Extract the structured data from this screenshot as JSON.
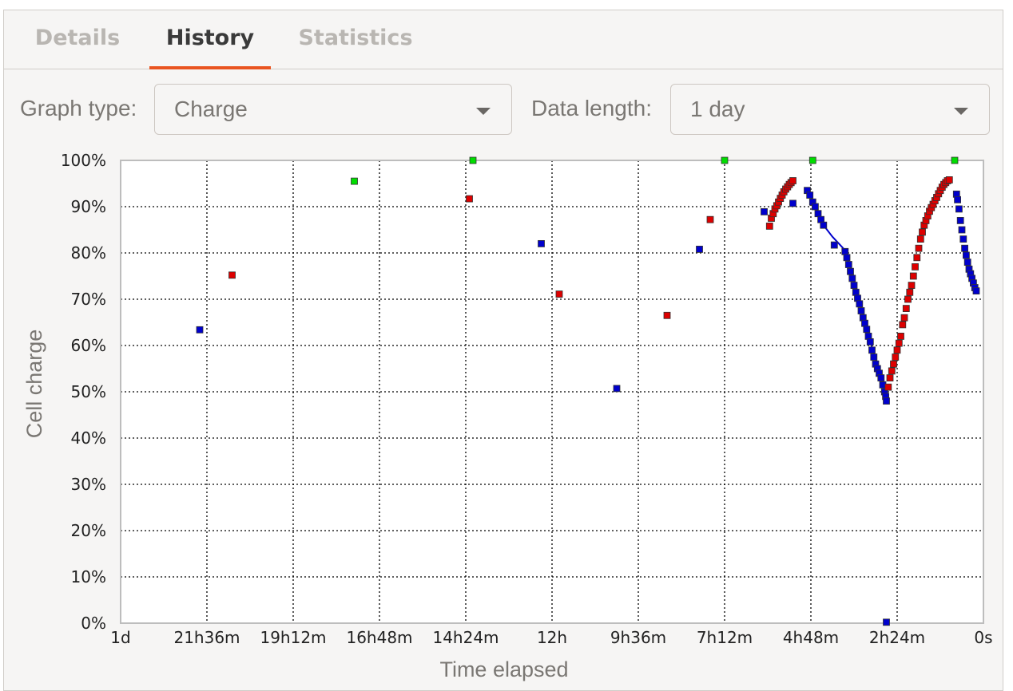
{
  "tabs": [
    {
      "label": "Details",
      "active": false
    },
    {
      "label": "History",
      "active": true
    },
    {
      "label": "Statistics",
      "active": false
    }
  ],
  "controls": {
    "graph_type_label": "Graph type:",
    "graph_type_value": "Charge",
    "data_length_label": "Data length:",
    "data_length_value": "1 day"
  },
  "colors": {
    "accent": "#e95420",
    "discharging": "#0000cc",
    "charging": "#dd0000",
    "charged": "#00dd00"
  },
  "chart_data": {
    "type": "scatter",
    "xlabel": "Time elapsed",
    "ylabel": "Cell charge",
    "x_units": "hours ago",
    "xlim": [
      24,
      0
    ],
    "ylim": [
      0,
      100
    ],
    "x_ticks": [
      {
        "value": 24,
        "label": "1d"
      },
      {
        "value": 21.6,
        "label": "21h36m"
      },
      {
        "value": 19.2,
        "label": "19h12m"
      },
      {
        "value": 16.8,
        "label": "16h48m"
      },
      {
        "value": 14.4,
        "label": "14h24m"
      },
      {
        "value": 12,
        "label": "12h"
      },
      {
        "value": 9.6,
        "label": "9h36m"
      },
      {
        "value": 7.2,
        "label": "7h12m"
      },
      {
        "value": 4.8,
        "label": "4h48m"
      },
      {
        "value": 2.4,
        "label": "2h24m"
      },
      {
        "value": 0,
        "label": "0s"
      }
    ],
    "y_ticks": [
      {
        "value": 100,
        "label": "100%"
      },
      {
        "value": 90,
        "label": "90%"
      },
      {
        "value": 80,
        "label": "80%"
      },
      {
        "value": 70,
        "label": "70%"
      },
      {
        "value": 60,
        "label": "60%"
      },
      {
        "value": 50,
        "label": "50%"
      },
      {
        "value": 40,
        "label": "40%"
      },
      {
        "value": 30,
        "label": "30%"
      },
      {
        "value": 20,
        "label": "20%"
      },
      {
        "value": 10,
        "label": "10%"
      },
      {
        "value": 0,
        "label": "0%"
      }
    ],
    "grid": true,
    "series": [
      {
        "state": "discharging",
        "points": [
          [
            21.8,
            63.4
          ],
          [
            12.3,
            82.0
          ],
          [
            10.2,
            50.7
          ],
          [
            7.9,
            80.8
          ],
          [
            6.1,
            88.9
          ],
          [
            5.3,
            90.7
          ],
          [
            4.9,
            93.5
          ],
          [
            4.83,
            92.5
          ],
          [
            4.75,
            91.0
          ],
          [
            4.68,
            90.0
          ],
          [
            4.6,
            88.5
          ],
          [
            4.52,
            87.2
          ],
          [
            4.45,
            86.0
          ],
          [
            4.15,
            81.7
          ],
          [
            3.85,
            80.3
          ],
          [
            3.8,
            79.0
          ],
          [
            3.75,
            77.5
          ],
          [
            3.7,
            76.0
          ],
          [
            3.65,
            74.5
          ],
          [
            3.6,
            73.0
          ],
          [
            3.55,
            71.5
          ],
          [
            3.5,
            70.2
          ],
          [
            3.45,
            69.0
          ],
          [
            3.4,
            67.5
          ],
          [
            3.35,
            66.0
          ],
          [
            3.3,
            64.8
          ],
          [
            3.25,
            63.5
          ],
          [
            3.2,
            62.0
          ],
          [
            3.15,
            60.8
          ],
          [
            3.1,
            59.0
          ],
          [
            3.05,
            57.5
          ],
          [
            3.0,
            56.0
          ],
          [
            2.95,
            55.0
          ],
          [
            2.9,
            54.0
          ],
          [
            2.85,
            53.0
          ],
          [
            2.8,
            51.5
          ],
          [
            2.75,
            50.0
          ],
          [
            2.72,
            49.0
          ],
          [
            2.7,
            48.0
          ],
          [
            0.75,
            92.7
          ],
          [
            0.72,
            91.5
          ],
          [
            0.68,
            89.5
          ],
          [
            0.64,
            87.0
          ],
          [
            0.6,
            85.0
          ],
          [
            0.56,
            83.0
          ],
          [
            0.52,
            81.0
          ],
          [
            0.48,
            79.5
          ],
          [
            0.44,
            78.0
          ],
          [
            0.4,
            76.5
          ],
          [
            0.36,
            75.5
          ],
          [
            0.32,
            74.5
          ],
          [
            0.28,
            73.5
          ],
          [
            0.24,
            72.5
          ],
          [
            0.2,
            71.8
          ],
          [
            2.7,
            0.2
          ]
        ]
      },
      {
        "state": "charging",
        "points": [
          [
            20.9,
            75.2
          ],
          [
            14.3,
            91.7
          ],
          [
            11.8,
            71.1
          ],
          [
            8.8,
            66.5
          ],
          [
            7.6,
            87.2
          ],
          [
            5.95,
            85.8
          ],
          [
            5.9,
            87.5
          ],
          [
            5.85,
            88.5
          ],
          [
            5.8,
            89.5
          ],
          [
            5.75,
            90.2
          ],
          [
            5.7,
            91.0
          ],
          [
            5.65,
            91.8
          ],
          [
            5.6,
            92.5
          ],
          [
            5.55,
            93.2
          ],
          [
            5.5,
            93.8
          ],
          [
            5.45,
            94.3
          ],
          [
            5.4,
            94.8
          ],
          [
            5.35,
            95.2
          ],
          [
            5.3,
            95.6
          ],
          [
            2.65,
            51.0
          ],
          [
            2.6,
            53.0
          ],
          [
            2.55,
            54.5
          ],
          [
            2.5,
            56.0
          ],
          [
            2.45,
            57.5
          ],
          [
            2.4,
            59.0
          ],
          [
            2.35,
            60.5
          ],
          [
            2.3,
            62.0
          ],
          [
            2.25,
            64.5
          ],
          [
            2.2,
            66.0
          ],
          [
            2.15,
            68.0
          ],
          [
            2.1,
            70.0
          ],
          [
            2.05,
            71.5
          ],
          [
            2.0,
            73.0
          ],
          [
            1.95,
            75.0
          ],
          [
            1.9,
            77.0
          ],
          [
            1.85,
            79.0
          ],
          [
            1.8,
            81.0
          ],
          [
            1.75,
            83.0
          ],
          [
            1.7,
            84.5
          ],
          [
            1.65,
            86.0
          ],
          [
            1.6,
            87.0
          ],
          [
            1.55,
            88.0
          ],
          [
            1.5,
            89.0
          ],
          [
            1.45,
            89.8
          ],
          [
            1.4,
            90.5
          ],
          [
            1.35,
            91.3
          ],
          [
            1.3,
            92.0
          ],
          [
            1.25,
            92.8
          ],
          [
            1.2,
            93.5
          ],
          [
            1.15,
            94.2
          ],
          [
            1.1,
            94.8
          ],
          [
            1.05,
            95.2
          ],
          [
            1.0,
            95.6
          ],
          [
            0.95,
            95.8
          ]
        ]
      },
      {
        "state": "charged",
        "points": [
          [
            17.5,
            95.5
          ],
          [
            14.2,
            100
          ],
          [
            7.2,
            100
          ],
          [
            4.75,
            100
          ],
          [
            0.8,
            100
          ]
        ]
      }
    ],
    "line": [
      [
        4.9,
        93.5
      ],
      [
        4.7,
        90.5
      ],
      [
        4.45,
        86.0
      ],
      [
        4.2,
        83.5
      ],
      [
        3.9,
        81.0
      ],
      [
        3.7,
        77.0
      ],
      [
        3.5,
        71.0
      ],
      [
        3.3,
        65.5
      ],
      [
        3.1,
        59.5
      ],
      [
        2.9,
        54.5
      ],
      [
        2.7,
        48.5
      ]
    ]
  }
}
